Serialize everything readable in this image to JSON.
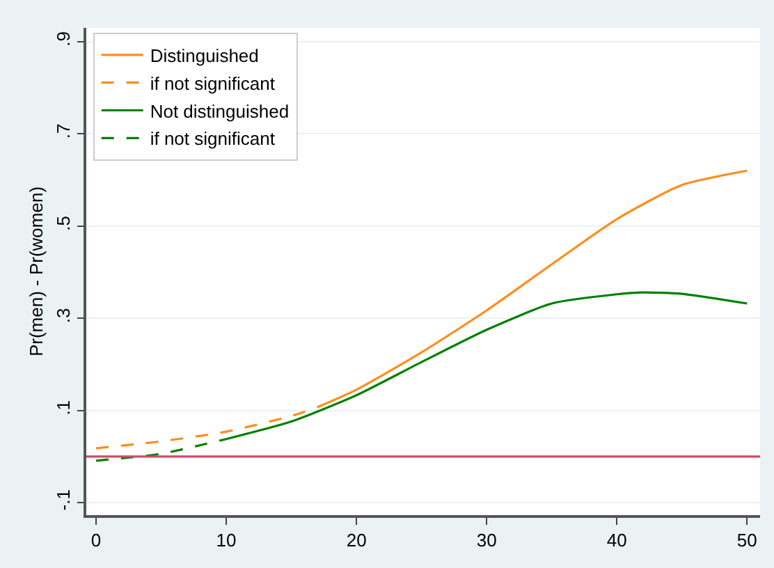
{
  "chart_data": {
    "type": "line",
    "ylabel": "Pr(men) - Pr(women)",
    "xlim": [
      -0.75,
      51
    ],
    "xticks": [
      0,
      10,
      20,
      30,
      40,
      50
    ],
    "ylim": [
      -0.127,
      0.93
    ],
    "yticks": [
      {
        "value": -0.1,
        "label": "-.1"
      },
      {
        "value": 0.1,
        "label": ".1"
      },
      {
        "value": 0.3,
        "label": ".3"
      },
      {
        "value": 0.5,
        "label": ".5"
      },
      {
        "value": 0.7,
        "label": ".7"
      },
      {
        "value": 0.9,
        "label": ".9"
      }
    ],
    "grid": "y",
    "legend": "top left",
    "series": [
      {
        "name": "Distinguished",
        "color": "#ff8c1a",
        "line_style": "solid",
        "x": [
          17,
          20,
          25,
          30,
          35,
          40,
          45,
          50
        ],
        "values": [
          0.107,
          0.145,
          0.226,
          0.317,
          0.417,
          0.515,
          0.589,
          0.62
        ]
      },
      {
        "name": "if not significant",
        "color": "#ff8c1a",
        "line_style": "dashed",
        "x": [
          0,
          5,
          10,
          15,
          17
        ],
        "values": [
          0.018,
          0.033,
          0.054,
          0.088,
          0.107
        ]
      },
      {
        "name": "Not distinguished",
        "color": "#008000",
        "line_style": "solid",
        "x": [
          10,
          15,
          20,
          25,
          30,
          35,
          40,
          42,
          45,
          50
        ],
        "values": [
          0.038,
          0.076,
          0.133,
          0.205,
          0.275,
          0.332,
          0.352,
          0.356,
          0.353,
          0.332
        ]
      },
      {
        "name": "if not significant",
        "color": "#008000",
        "line_style": "dashed",
        "x": [
          0,
          5,
          10
        ],
        "values": [
          -0.009,
          0.006,
          0.038
        ]
      }
    ],
    "ref_lines": [
      {
        "axis": "y",
        "value": 0,
        "color": "#d04a6a"
      }
    ]
  }
}
